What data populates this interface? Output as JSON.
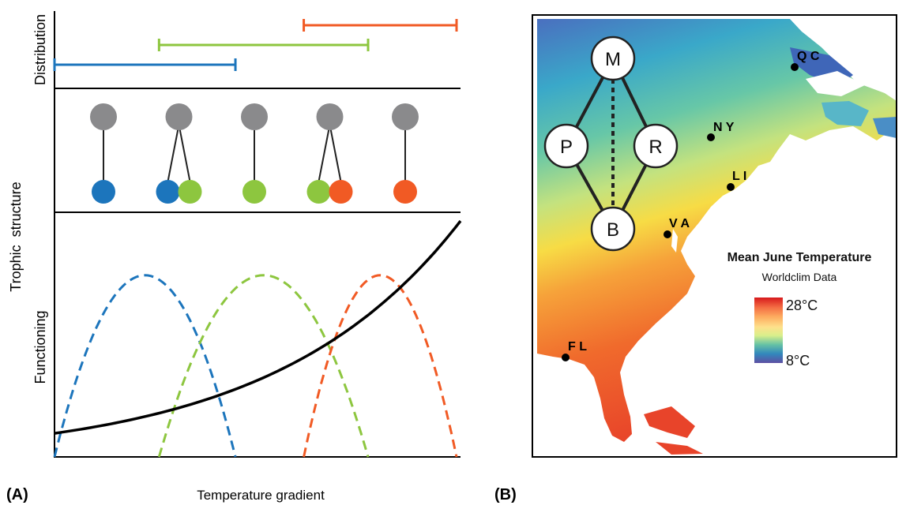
{
  "panel_a": {
    "tag": "(A)",
    "section_labels": {
      "distribution": "Distribution",
      "trophic": "Trophic  structure",
      "functioning": "Functioning"
    },
    "xlabel": "Temperature gradient",
    "colors": {
      "blue": "#1c75bc",
      "green": "#8dc63f",
      "orange": "#f15a24",
      "gray": "#8a8a8c",
      "black": "#000000"
    },
    "distribution_ranges": [
      {
        "color": "blue",
        "start": 0.0,
        "end": 0.45
      },
      {
        "color": "green",
        "start": 0.26,
        "end": 0.78
      },
      {
        "color": "orange",
        "start": 0.62,
        "end": 1.0
      }
    ],
    "trophic_modules": [
      {
        "consumers": [
          "blue"
        ]
      },
      {
        "consumers": [
          "blue",
          "green"
        ]
      },
      {
        "consumers": [
          "green"
        ]
      },
      {
        "consumers": [
          "green",
          "orange"
        ]
      },
      {
        "consumers": [
          "orange"
        ]
      }
    ],
    "performance_curves": [
      {
        "color": "blue",
        "start": 0.0,
        "end": 0.45,
        "peak": 0.77
      },
      {
        "color": "green",
        "start": 0.26,
        "end": 0.78,
        "peak": 0.77
      },
      {
        "color": "orange",
        "start": 0.62,
        "end": 1.0,
        "peak": 0.77
      }
    ],
    "overall_functioning": {
      "start": 0.1,
      "end": 1.0,
      "curvature": 2.2
    }
  },
  "panel_b": {
    "tag": "(B)",
    "legend_title": "Mean June Temperature",
    "legend_subtitle": "Worldclim Data",
    "legend_max": "28°C",
    "legend_min": "8°C",
    "legend_colors": [
      "#d7191c",
      "#f46d43",
      "#fdae61",
      "#fee08b",
      "#d9ef8b",
      "#66c2a5",
      "#3288bd",
      "#5e4fa2"
    ],
    "network_nodes": [
      {
        "label": "M"
      },
      {
        "label": "P"
      },
      {
        "label": "R"
      },
      {
        "label": "B"
      }
    ],
    "locations": [
      {
        "label": "Q C"
      },
      {
        "label": "N Y"
      },
      {
        "label": "L I"
      },
      {
        "label": "V A"
      },
      {
        "label": "F L"
      }
    ]
  }
}
